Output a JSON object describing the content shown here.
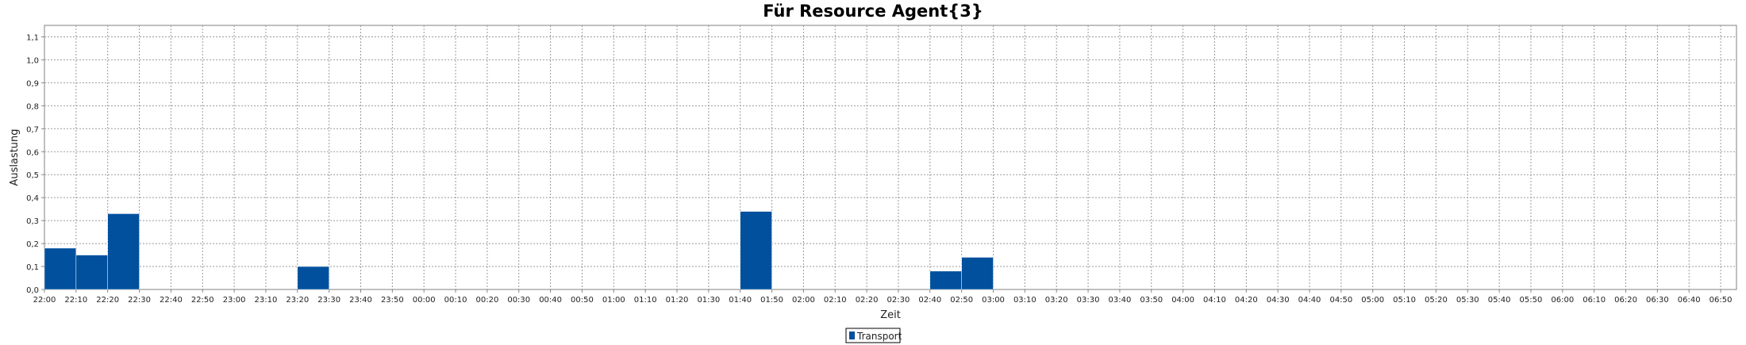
{
  "chart_data": {
    "type": "bar",
    "title": "Für Resource Agent{3}",
    "xlabel": "Zeit",
    "ylabel": "Auslastung",
    "ylim": [
      0,
      1.15
    ],
    "grid": true,
    "legend_position": "bottom-center",
    "x_ticks": [
      "22:00",
      "22:10",
      "22:20",
      "22:30",
      "22:40",
      "22:50",
      "23:00",
      "23:10",
      "23:20",
      "23:30",
      "23:40",
      "23:50",
      "00:00",
      "00:10",
      "00:20",
      "00:30",
      "00:40",
      "00:50",
      "01:00",
      "01:10",
      "01:20",
      "01:30",
      "01:40",
      "01:50",
      "02:00",
      "02:10",
      "02:20",
      "02:30",
      "02:40",
      "02:50",
      "03:00",
      "03:10",
      "03:20",
      "03:30",
      "03:40",
      "03:50",
      "04:00",
      "04:10",
      "04:20",
      "04:30",
      "04:40",
      "04:50",
      "05:00",
      "05:10",
      "05:20",
      "05:30",
      "05:40",
      "05:50",
      "06:00",
      "06:10",
      "06:20",
      "06:30",
      "06:40",
      "06:50"
    ],
    "y_ticks": [
      "0,0",
      "0,1",
      "0,2",
      "0,3",
      "0,4",
      "0,5",
      "0,6",
      "0,7",
      "0,8",
      "0,9",
      "1,0",
      "1,1"
    ],
    "series": [
      {
        "name": "Transport",
        "color": "#00509d",
        "bars": [
          {
            "start": "22:00",
            "end": "22:10",
            "value": 0.18
          },
          {
            "start": "22:10",
            "end": "22:20",
            "value": 0.15
          },
          {
            "start": "22:20",
            "end": "22:30",
            "value": 0.33
          },
          {
            "start": "23:20",
            "end": "23:30",
            "value": 0.1
          },
          {
            "start": "01:40",
            "end": "01:50",
            "value": 0.34
          },
          {
            "start": "02:40",
            "end": "02:50",
            "value": 0.08
          },
          {
            "start": "02:50",
            "end": "03:00",
            "value": 0.14
          }
        ]
      }
    ]
  }
}
